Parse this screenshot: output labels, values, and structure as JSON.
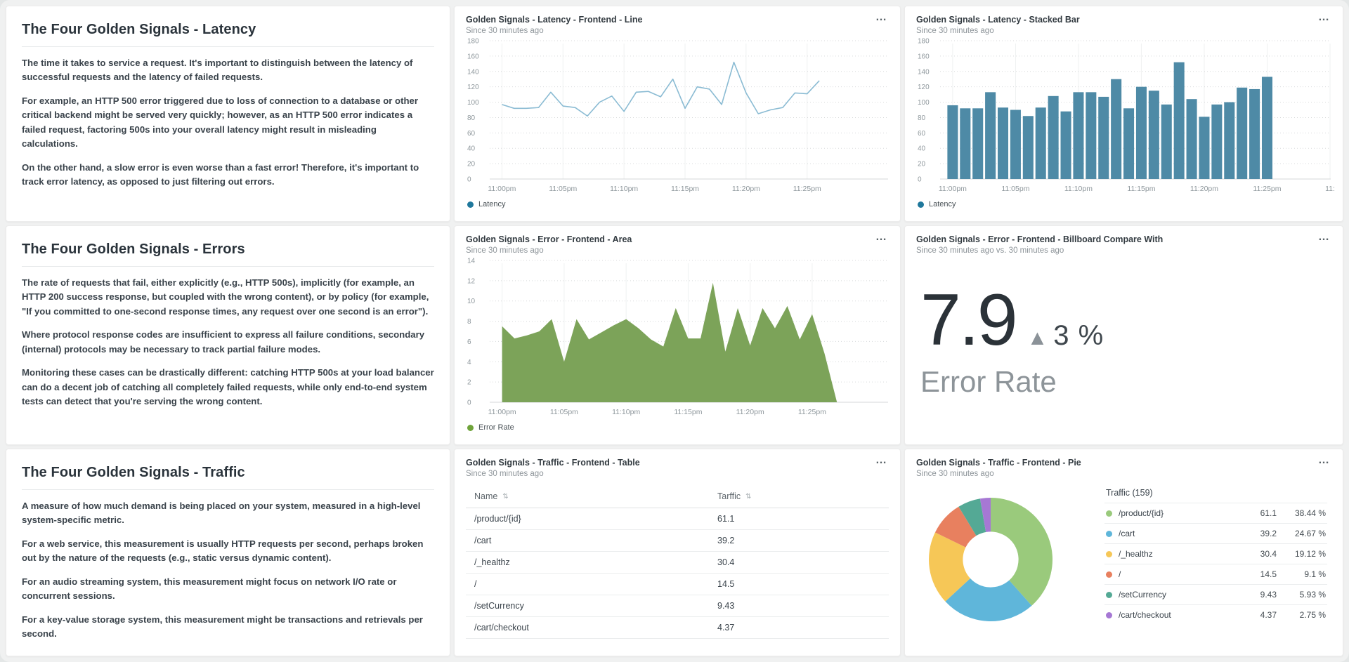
{
  "ui": {
    "menu_glyph": "…",
    "sort_glyph": "⇅"
  },
  "panels": {
    "latency_text": {
      "title": "The Four Golden Signals - Latency",
      "paragraphs": [
        "The time it takes to service a request. It's important to distinguish between the latency of successful requests and the latency of failed requests.",
        "For example, an HTTP 500 error triggered due to loss of connection to a database or other critical backend might be served very quickly; however, as an HTTP 500 error indicates a failed request, factoring 500s into your overall latency might result in misleading calculations.",
        "On the other hand, a slow error is even worse than a fast error! Therefore, it's important to track error latency, as opposed to just filtering out errors."
      ]
    },
    "errors_text": {
      "title": "The Four Golden Signals - Errors",
      "paragraphs": [
        "The rate of requests that fail, either explicitly (e.g., HTTP 500s), implicitly (for example, an HTTP 200 success response, but coupled with the wrong content), or by policy (for example, \"If you committed to one-second response times, any request over one second is an error\").",
        "Where protocol response codes are insufficient to express all failure conditions, secondary (internal) protocols may be necessary to track partial failure modes.",
        "Monitoring these cases can be drastically different: catching HTTP 500s at your load balancer can do a decent job of catching all completely failed requests, while only end-to-end system tests can detect that you're serving the wrong content."
      ]
    },
    "traffic_text": {
      "title": "The Four Golden Signals - Traffic",
      "paragraphs": [
        "A measure of how much demand is being placed on your system, measured in a high-level system-specific metric.",
        "For a web service, this measurement is usually HTTP requests per second, perhaps broken out by the nature of the requests (e.g., static versus dynamic content).",
        "For an audio streaming system, this measurement might focus on network I/O rate or concurrent sessions.",
        "For a key-value storage system, this measurement might be transactions and retrievals per second."
      ]
    },
    "latency_line": {
      "title": "Golden Signals - Latency - Frontend - Line",
      "subtitle": "Since 30 minutes ago",
      "legend": {
        "label": "Latency",
        "color": "#20789c"
      }
    },
    "latency_bar": {
      "title": "Golden Signals - Latency - Stacked Bar",
      "subtitle": "Since 30 minutes ago",
      "legend": {
        "label": "Latency",
        "color": "#20789c"
      }
    },
    "error_area": {
      "title": "Golden Signals - Error - Frontend - Area",
      "subtitle": "Since 30 minutes ago",
      "legend": {
        "label": "Error Rate",
        "color": "#6fa33a"
      }
    },
    "error_billboard": {
      "title": "Golden Signals - Error - Frontend - Billboard Compare With",
      "subtitle": "Since 30 minutes ago vs. 30 minutes ago",
      "value": "7.9",
      "delta_glyph": "▲",
      "delta": "3 %",
      "metric_label": "Error Rate",
      "value_color": "#2b3238",
      "delta_icon_color": "#8b9298",
      "delta_color": "#3f474d",
      "label_color": "#8d9499"
    },
    "traffic_table": {
      "title": "Golden Signals - Traffic - Frontend - Table",
      "subtitle": "Since 30 minutes ago"
    },
    "traffic_pie": {
      "title": "Golden Signals - Traffic - Frontend - Pie",
      "subtitle": "Since 30 minutes ago"
    }
  },
  "chart_data": [
    {
      "id": "latency-line",
      "type": "line",
      "title": "Golden Signals - Latency - Frontend - Line",
      "ylabel": "Latency",
      "color": "#8abbd3",
      "x_domain": [
        -1,
        31
      ],
      "x_ticks": [
        {
          "v": 0,
          "label": "11:00pm"
        },
        {
          "v": 5,
          "label": "11:05pm"
        },
        {
          "v": 10,
          "label": "11:10pm"
        },
        {
          "v": 15,
          "label": "11:15pm"
        },
        {
          "v": 20,
          "label": "11:20pm"
        },
        {
          "v": 25,
          "label": "11:25pm"
        }
      ],
      "ylim": [
        0,
        180
      ],
      "y_step": 20,
      "values": [
        97,
        92,
        92,
        93,
        113,
        95,
        93,
        82,
        100,
        108,
        88,
        113,
        114,
        107,
        130,
        92,
        120,
        117,
        97,
        152,
        112,
        85,
        90,
        93,
        112,
        111,
        128
      ]
    },
    {
      "id": "latency-bar",
      "type": "bar",
      "title": "Golden Signals - Latency - Stacked Bar",
      "ylabel": "Latency",
      "color": "#4e8aa6",
      "margin_right": 2,
      "x_domain": [
        -1,
        30
      ],
      "x_ticks": [
        {
          "v": 0,
          "label": "11:00pm"
        },
        {
          "v": 5,
          "label": "11:05pm"
        },
        {
          "v": 10,
          "label": "11:10pm"
        },
        {
          "v": 15,
          "label": "11:15pm"
        },
        {
          "v": 20,
          "label": "11:20pm"
        },
        {
          "v": 25,
          "label": "11:25pm"
        },
        {
          "v": 30,
          "label": "11:"
        }
      ],
      "ylim": [
        0,
        180
      ],
      "y_step": 20,
      "values": [
        96,
        92,
        92,
        113,
        93,
        90,
        82,
        93,
        108,
        88,
        113,
        113,
        107,
        130,
        92,
        120,
        115,
        97,
        152,
        104,
        81,
        97,
        100,
        119,
        117,
        133
      ]
    },
    {
      "id": "error-area",
      "type": "area",
      "title": "Golden Signals - Error - Frontend - Area",
      "ylabel": "Error Rate",
      "color": "#7ca359",
      "x_domain": [
        -1,
        30.5
      ],
      "x_ticks": [
        {
          "v": 0,
          "label": "11:00pm"
        },
        {
          "v": 5,
          "label": "11:05pm"
        },
        {
          "v": 10,
          "label": "11:10pm"
        },
        {
          "v": 15,
          "label": "11:15pm"
        },
        {
          "v": 20,
          "label": "11:20pm"
        },
        {
          "v": 25,
          "label": "11:25pm"
        }
      ],
      "ylim": [
        0,
        14
      ],
      "y_step": 2,
      "values": [
        7.5,
        6.3,
        6.6,
        7.0,
        8.2,
        4.0,
        8.2,
        6.2,
        6.9,
        7.6,
        8.2,
        7.3,
        6.2,
        5.5,
        9.3,
        6.3,
        6.3,
        11.8,
        5.0,
        9.3,
        5.6,
        9.3,
        7.3,
        9.5,
        6.2,
        8.7,
        4.8,
        0
      ]
    },
    {
      "id": "traffic-table",
      "type": "table",
      "title": "Golden Signals - Traffic - Frontend - Table",
      "columns": [
        {
          "label": "Name",
          "sortable": true
        },
        {
          "label": "Tarffic",
          "sortable": true
        }
      ],
      "rows": [
        [
          "/product/{id}",
          "61.1"
        ],
        [
          "/cart",
          "39.2"
        ],
        [
          "/_healthz",
          "30.4"
        ],
        [
          "/",
          "14.5"
        ],
        [
          "/setCurrency",
          "9.43"
        ],
        [
          "/cart/checkout",
          "4.37"
        ]
      ]
    },
    {
      "id": "traffic-pie",
      "type": "pie",
      "title": "Golden Signals - Traffic - Frontend - Pie",
      "legend_title": "Traffic (159)",
      "donut_hole_ratio": 0.45,
      "start_angle_deg": 0,
      "direction": "clockwise",
      "slices": [
        {
          "label": "/product/{id}",
          "value": "61.1",
          "percent": "38.44 %",
          "color": "#9aca7c"
        },
        {
          "label": "/cart",
          "value": "39.2",
          "percent": "24.67 %",
          "color": "#5fb6da"
        },
        {
          "label": "/_healthz",
          "value": "30.4",
          "percent": "19.12 %",
          "color": "#f6c757"
        },
        {
          "label": "/",
          "value": "14.5",
          "percent": "9.1 %",
          "color": "#e8805f"
        },
        {
          "label": "/setCurrency",
          "value": "9.43",
          "percent": "5.93 %",
          "color": "#54a995"
        },
        {
          "label": "/cart/checkout",
          "value": "4.37",
          "percent": "2.75 %",
          "color": "#a678d4"
        }
      ]
    }
  ]
}
